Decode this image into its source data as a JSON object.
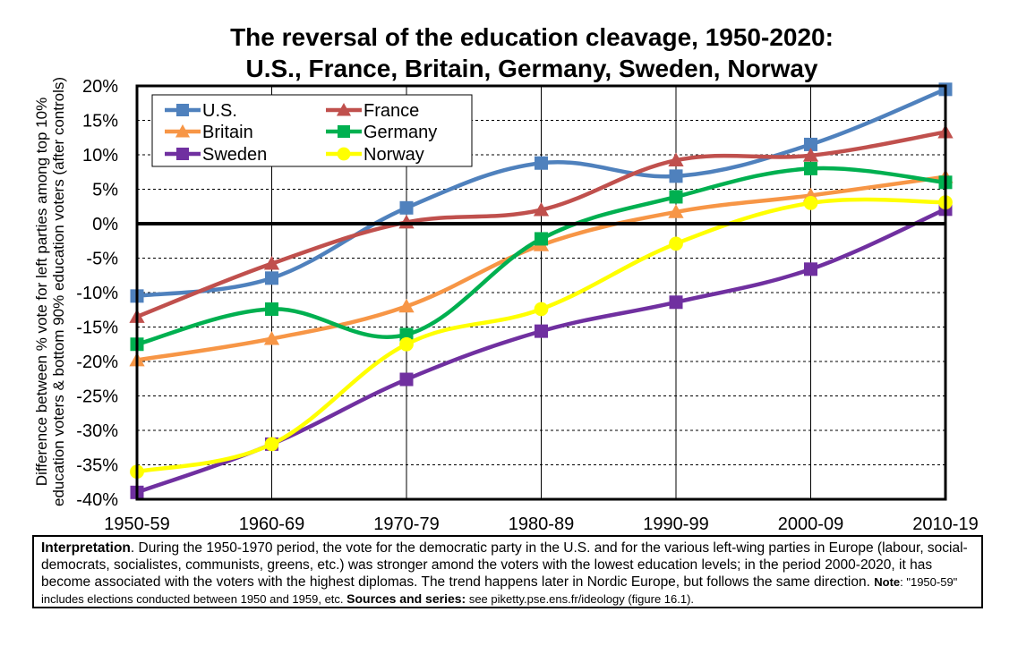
{
  "chart_data": {
    "type": "line",
    "title": "The reversal of the education cleavage, 1950-2020:",
    "subtitle": "U.S., France, Britain, Germany, Sweden, Norway",
    "ylabel_line1": "Difference between % vote for left parties among top 10%",
    "ylabel_line2": "education voters & bottom 90% education voters (after controls)",
    "categories": [
      "1950-59",
      "1960-69",
      "1970-79",
      "1980-89",
      "1990-99",
      "2000-09",
      "2010-19"
    ],
    "y_ticks": [
      "20%",
      "15%",
      "10%",
      "5%",
      "0%",
      "-5%",
      "-10%",
      "-15%",
      "-20%",
      "-25%",
      "-30%",
      "-35%",
      "-40%"
    ],
    "ylim": [
      -40,
      20
    ],
    "grid": true,
    "legend_position": "top-left",
    "series": [
      {
        "name": "U.S.",
        "color": "#4F81BD",
        "marker": "square",
        "values": [
          -10.5,
          -7.9,
          2.3,
          8.8,
          6.9,
          11.5,
          19.5
        ]
      },
      {
        "name": "France",
        "color": "#C0504D",
        "marker": "triangle",
        "values": [
          -13.5,
          -5.8,
          0.2,
          2.0,
          9.2,
          9.9,
          13.3
        ]
      },
      {
        "name": "Britain",
        "color": "#F79646",
        "marker": "triangle",
        "values": [
          -19.8,
          -16.7,
          -12.0,
          -3.1,
          1.7,
          4.1,
          6.8
        ]
      },
      {
        "name": "Germany",
        "color": "#00B050",
        "marker": "square",
        "values": [
          -17.5,
          -12.4,
          -16.1,
          -2.2,
          3.9,
          8.0,
          6.0
        ]
      },
      {
        "name": "Sweden",
        "color": "#7030A0",
        "marker": "square",
        "values": [
          -39.0,
          -32.0,
          -22.6,
          -15.6,
          -11.4,
          -6.6,
          2.1
        ]
      },
      {
        "name": "Norway",
        "color": "#FFFF00",
        "marker": "circle",
        "values": [
          -36.0,
          -32.0,
          -17.5,
          -12.4,
          -2.9,
          3.0,
          3.1
        ]
      }
    ]
  },
  "interpretation": {
    "label": "Interpretation",
    "text": ". During the 1950-1970 period, the vote for the democratic party in the U.S. and for the various left-wing parties in Europe (labour, social-democrats, socialistes, communists, greens, etc.) was stronger amond the voters with the lowest education levels; in the period 2000-2020, it has become associated with the voters with the highest diplomas. The trend happens later in Nordic Europe, but follows the same direction. ",
    "note_label": "Note",
    "note_text": ": \"1950-59\" includes elections conducted between 1950 and 1959, etc.  ",
    "sources_label": "Sources and series:",
    "sources_text": " see piketty.pse.ens.fr/ideology (figure 16.1)."
  }
}
